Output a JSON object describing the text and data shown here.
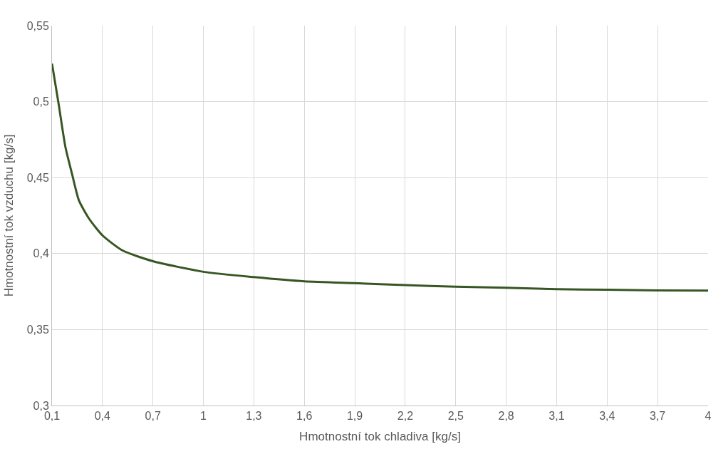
{
  "chart_data": {
    "type": "line",
    "xlabel": "Hmotnostní tok chladiva [kg/s]",
    "ylabel": "Hmotnostní tok vzduchu [kg/s]",
    "x": [
      0.1,
      0.14,
      0.18,
      0.22,
      0.26,
      0.32,
      0.4,
      0.52,
      0.7,
      1.0,
      1.3,
      1.6,
      1.9,
      2.2,
      2.5,
      2.8,
      3.1,
      3.4,
      3.7,
      4.0
    ],
    "series": [
      {
        "color": "#375623",
        "values": [
          0.525,
          0.498,
          0.47,
          0.452,
          0.435,
          0.423,
          0.412,
          0.402,
          0.395,
          0.388,
          0.3845,
          0.3817,
          0.3805,
          0.3793,
          0.3782,
          0.3775,
          0.3766,
          0.3762,
          0.3758,
          0.3756
        ]
      }
    ],
    "xlim": [
      0.1,
      4
    ],
    "xticks": [
      {
        "value": 0.1,
        "label": "0,1"
      },
      {
        "value": 0.4,
        "label": "0,4"
      },
      {
        "value": 0.7,
        "label": "0,7"
      },
      1,
      {
        "value": 1.3,
        "label": "1,3"
      },
      {
        "value": 1.6,
        "label": "1,6"
      },
      {
        "value": 1.9,
        "label": "1,9"
      },
      {
        "value": 2.2,
        "label": "2,2"
      },
      {
        "value": 2.5,
        "label": "2,5"
      },
      {
        "value": 2.8,
        "label": "2,8"
      },
      {
        "value": 3.1,
        "label": "3,1"
      },
      {
        "value": 3.4,
        "label": "3,4"
      },
      {
        "value": 3.7,
        "label": "3,7"
      },
      4
    ],
    "ylim": [
      0.3,
      0.55
    ],
    "yticks": [
      {
        "value": 0.3,
        "label": "0,3"
      },
      {
        "value": 0.35,
        "label": "0,35"
      },
      {
        "value": 0.4,
        "label": "0,4"
      },
      {
        "value": 0.45,
        "label": "0,45"
      },
      {
        "value": 0.5,
        "label": "0,5"
      },
      {
        "value": 0.55,
        "label": "0,55"
      }
    ],
    "grid": true,
    "marker": "none",
    "line_style": "solid"
  }
}
